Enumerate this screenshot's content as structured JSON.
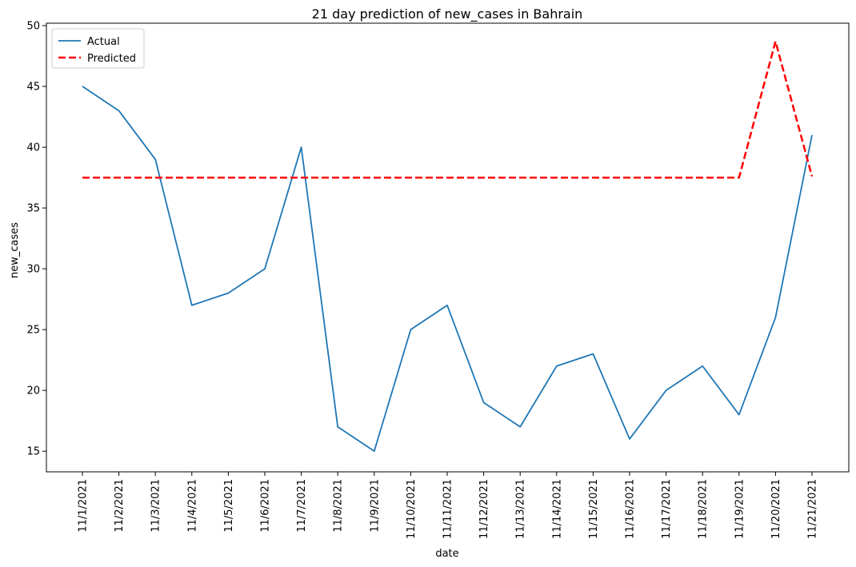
{
  "chart_data": {
    "type": "line",
    "title": "21 day prediction of new_cases in Bahrain",
    "xlabel": "date",
    "ylabel": "new_cases",
    "categories": [
      "11/1/2021",
      "11/2/2021",
      "11/3/2021",
      "11/4/2021",
      "11/5/2021",
      "11/6/2021",
      "11/7/2021",
      "11/8/2021",
      "11/9/2021",
      "11/10/2021",
      "11/11/2021",
      "11/12/2021",
      "11/13/2021",
      "11/14/2021",
      "11/15/2021",
      "11/16/2021",
      "11/17/2021",
      "11/18/2021",
      "11/19/2021",
      "11/20/2021",
      "11/21/2021"
    ],
    "ylim": [
      13.3,
      50.2
    ],
    "yticks": [
      15,
      20,
      25,
      30,
      35,
      40,
      45,
      50
    ],
    "grid": false,
    "legend_position": "top-left",
    "series": [
      {
        "name": "Actual",
        "color": "#1f77b4",
        "style": "solid",
        "values": [
          45,
          43,
          39,
          27,
          28,
          30,
          40,
          17,
          15,
          25,
          27,
          19,
          17,
          22,
          23,
          16,
          20,
          22,
          18,
          26,
          41
        ]
      },
      {
        "name": "Predicted",
        "color": "#ff0000",
        "style": "dashed",
        "values": [
          37.5,
          37.5,
          37.5,
          37.5,
          37.5,
          37.5,
          37.5,
          37.5,
          37.5,
          37.5,
          37.5,
          37.5,
          37.5,
          37.5,
          37.5,
          37.5,
          37.5,
          37.5,
          37.5,
          48.7,
          37.6
        ]
      }
    ]
  }
}
